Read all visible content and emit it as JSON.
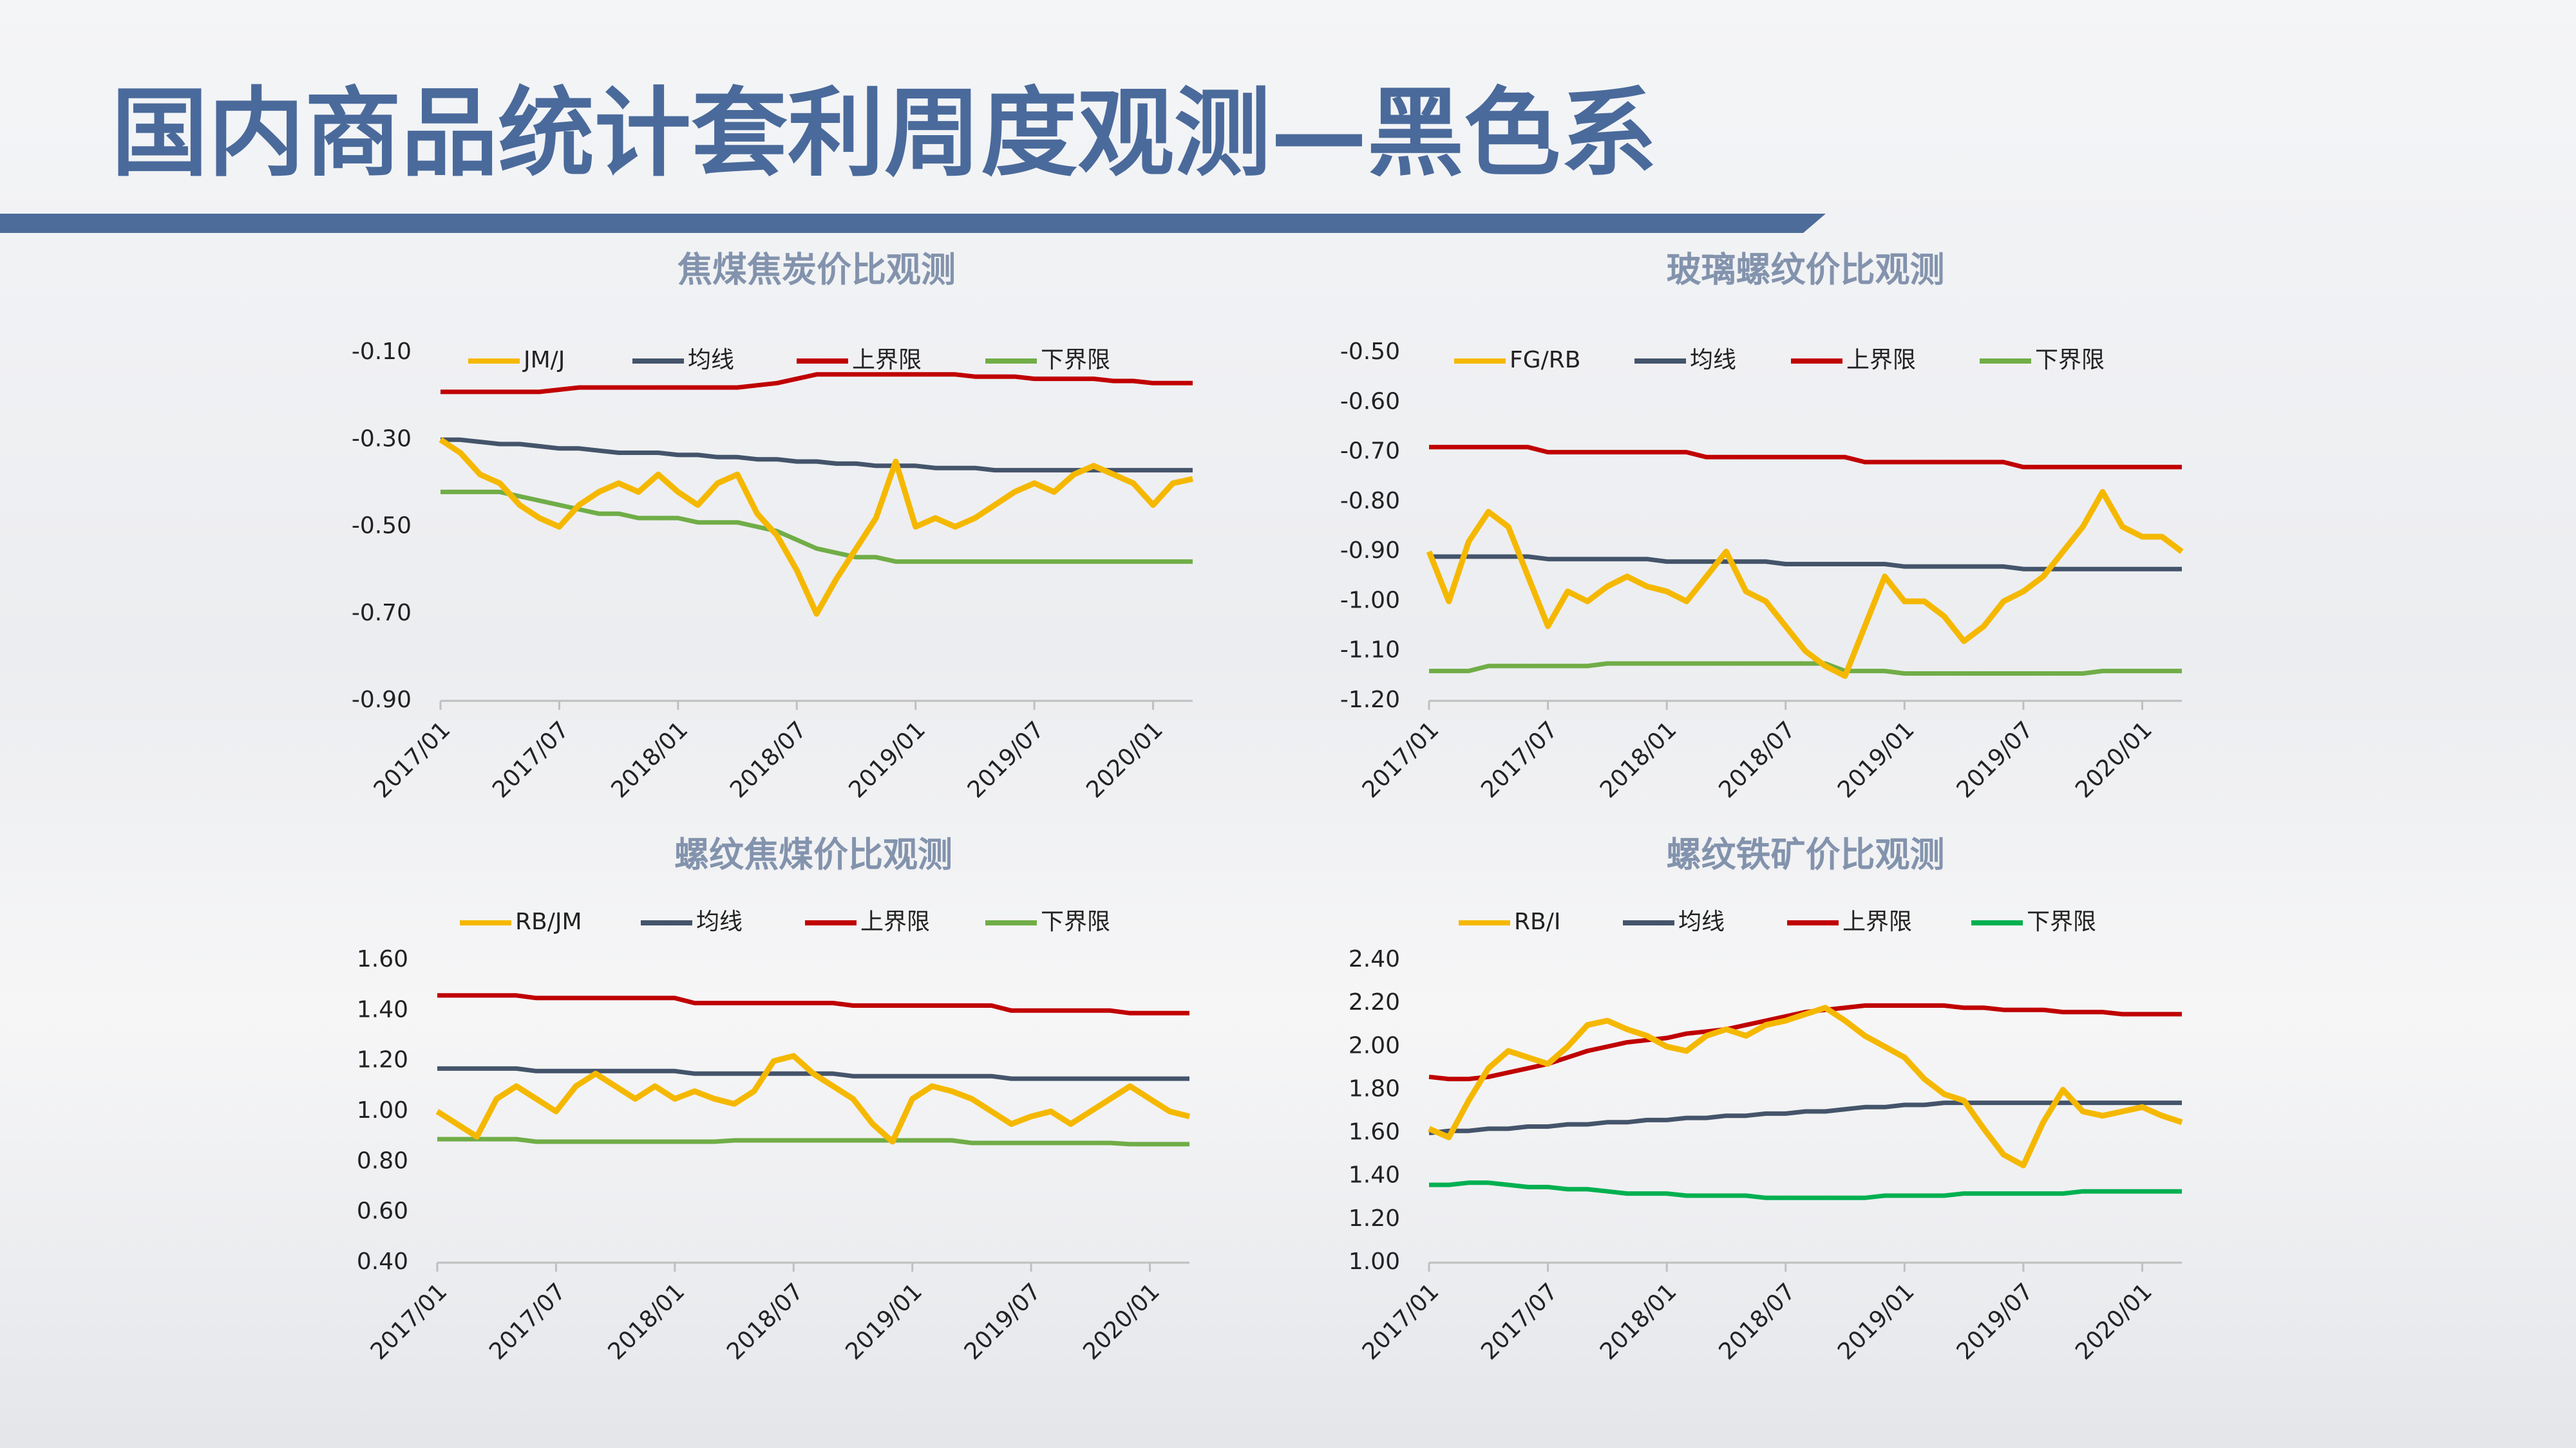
{
  "header": {
    "title": "国内商品统计套利周度观测—黑色系"
  },
  "chart_data": [
    {
      "type": "line",
      "title": "焦煤焦炭价比观测",
      "categories": [
        "2017/01",
        null,
        null,
        null,
        null,
        null,
        "2017/07",
        null,
        null,
        null,
        null,
        null,
        "2018/01",
        null,
        null,
        null,
        null,
        null,
        "2018/07",
        null,
        null,
        null,
        null,
        null,
        "2019/01",
        null,
        null,
        null,
        null,
        null,
        "2019/07",
        null,
        null,
        null,
        null,
        null,
        "2020/01",
        null,
        null
      ],
      "ylim": [
        -0.9,
        -0.1
      ],
      "yticks": [
        {
          "value": -0.1,
          "label": "-0.10"
        },
        {
          "value": -0.3,
          "label": "-0.30"
        },
        {
          "value": -0.5,
          "label": "-0.50"
        },
        {
          "value": -0.7,
          "label": "-0.70"
        },
        {
          "value": -0.9,
          "label": "-0.90"
        }
      ],
      "grid": false,
      "series": [
        {
          "name": "JM/J",
          "color": "#f5b800",
          "values": [
            -0.3,
            -0.33,
            -0.38,
            -0.4,
            -0.45,
            -0.48,
            -0.5,
            -0.45,
            -0.42,
            -0.4,
            -0.42,
            -0.38,
            -0.42,
            -0.45,
            -0.4,
            -0.38,
            -0.47,
            -0.52,
            -0.6,
            -0.7,
            -0.62,
            -0.55,
            -0.48,
            -0.35,
            -0.5,
            -0.48,
            -0.5,
            -0.48,
            -0.45,
            -0.42,
            -0.4,
            -0.42,
            -0.38,
            -0.36,
            -0.38,
            -0.4,
            -0.45,
            -0.4,
            -0.39
          ]
        },
        {
          "name": "均线",
          "color": "#44546a",
          "values": [
            -0.3,
            -0.3,
            -0.305,
            -0.31,
            -0.31,
            -0.315,
            -0.32,
            -0.32,
            -0.325,
            -0.33,
            -0.33,
            -0.33,
            -0.335,
            -0.335,
            -0.34,
            -0.34,
            -0.345,
            -0.345,
            -0.35,
            -0.35,
            -0.355,
            -0.355,
            -0.36,
            -0.36,
            -0.36,
            -0.365,
            -0.365,
            -0.365,
            -0.37,
            -0.37,
            -0.37,
            -0.37,
            -0.37,
            -0.37,
            -0.37,
            -0.37,
            -0.37,
            -0.37,
            -0.37
          ]
        },
        {
          "name": "上界限",
          "color": "#c00000",
          "values": [
            -0.19,
            -0.19,
            -0.19,
            -0.19,
            -0.19,
            -0.19,
            -0.185,
            -0.18,
            -0.18,
            -0.18,
            -0.18,
            -0.18,
            -0.18,
            -0.18,
            -0.18,
            -0.18,
            -0.175,
            -0.17,
            -0.16,
            -0.15,
            -0.15,
            -0.15,
            -0.15,
            -0.15,
            -0.15,
            -0.15,
            -0.15,
            -0.155,
            -0.155,
            -0.155,
            -0.16,
            -0.16,
            -0.16,
            -0.16,
            -0.165,
            -0.165,
            -0.17,
            -0.17,
            -0.17
          ]
        },
        {
          "name": "下界限",
          "color": "#70ad47",
          "values": [
            -0.42,
            -0.42,
            -0.42,
            -0.42,
            -0.43,
            -0.44,
            -0.45,
            -0.46,
            -0.47,
            -0.47,
            -0.48,
            -0.48,
            -0.48,
            -0.49,
            -0.49,
            -0.49,
            -0.5,
            -0.51,
            -0.53,
            -0.55,
            -0.56,
            -0.57,
            -0.57,
            -0.58,
            -0.58,
            -0.58,
            -0.58,
            -0.58,
            -0.58,
            -0.58,
            -0.58,
            -0.58,
            -0.58,
            -0.58,
            -0.58,
            -0.58,
            -0.58,
            -0.58,
            -0.58
          ]
        }
      ]
    },
    {
      "type": "line",
      "title": "玻璃螺纹价比观测",
      "categories": [
        "2017/01",
        null,
        null,
        null,
        null,
        null,
        "2017/07",
        null,
        null,
        null,
        null,
        null,
        "2018/01",
        null,
        null,
        null,
        null,
        null,
        "2018/07",
        null,
        null,
        null,
        null,
        null,
        "2019/01",
        null,
        null,
        null,
        null,
        null,
        "2019/07",
        null,
        null,
        null,
        null,
        null,
        "2020/01",
        null,
        null
      ],
      "ylim": [
        -1.2,
        -0.5
      ],
      "yticks": [
        {
          "value": -0.5,
          "label": "-0.50"
        },
        {
          "value": -0.6,
          "label": "-0.60"
        },
        {
          "value": -0.7,
          "label": "-0.70"
        },
        {
          "value": -0.8,
          "label": "-0.80"
        },
        {
          "value": -0.9,
          "label": "-0.90"
        },
        {
          "value": -1.0,
          "label": "-1.00"
        },
        {
          "value": -1.1,
          "label": "-1.10"
        },
        {
          "value": -1.2,
          "label": "-1.20"
        }
      ],
      "grid": false,
      "series": [
        {
          "name": "FG/RB",
          "color": "#f5b800",
          "values": [
            -0.9,
            -1.0,
            -0.88,
            -0.82,
            -0.85,
            -0.95,
            -1.05,
            -0.98,
            -1.0,
            -0.97,
            -0.95,
            -0.97,
            -0.98,
            -1.0,
            -0.95,
            -0.9,
            -0.98,
            -1.0,
            -1.05,
            -1.1,
            -1.13,
            -1.15,
            -1.05,
            -0.95,
            -1.0,
            -1.0,
            -1.03,
            -1.08,
            -1.05,
            -1.0,
            -0.98,
            -0.95,
            -0.9,
            -0.85,
            -0.78,
            -0.85,
            -0.87,
            -0.87,
            -0.9
          ]
        },
        {
          "name": "均线",
          "color": "#44546a",
          "values": [
            -0.91,
            -0.91,
            -0.91,
            -0.91,
            -0.91,
            -0.91,
            -0.915,
            -0.915,
            -0.915,
            -0.915,
            -0.915,
            -0.915,
            -0.92,
            -0.92,
            -0.92,
            -0.92,
            -0.92,
            -0.92,
            -0.925,
            -0.925,
            -0.925,
            -0.925,
            -0.925,
            -0.925,
            -0.93,
            -0.93,
            -0.93,
            -0.93,
            -0.93,
            -0.93,
            -0.935,
            -0.935,
            -0.935,
            -0.935,
            -0.935,
            -0.935,
            -0.935,
            -0.935,
            -0.935
          ]
        },
        {
          "name": "上界限",
          "color": "#c00000",
          "values": [
            -0.69,
            -0.69,
            -0.69,
            -0.69,
            -0.69,
            -0.69,
            -0.7,
            -0.7,
            -0.7,
            -0.7,
            -0.7,
            -0.7,
            -0.7,
            -0.7,
            -0.71,
            -0.71,
            -0.71,
            -0.71,
            -0.71,
            -0.71,
            -0.71,
            -0.71,
            -0.72,
            -0.72,
            -0.72,
            -0.72,
            -0.72,
            -0.72,
            -0.72,
            -0.72,
            -0.73,
            -0.73,
            -0.73,
            -0.73,
            -0.73,
            -0.73,
            -0.73,
            -0.73,
            -0.73
          ]
        },
        {
          "name": "下界限",
          "color": "#70ad47",
          "values": [
            -1.14,
            -1.14,
            -1.14,
            -1.13,
            -1.13,
            -1.13,
            -1.13,
            -1.13,
            -1.13,
            -1.125,
            -1.125,
            -1.125,
            -1.125,
            -1.125,
            -1.125,
            -1.125,
            -1.125,
            -1.125,
            -1.125,
            -1.125,
            -1.125,
            -1.14,
            -1.14,
            -1.14,
            -1.145,
            -1.145,
            -1.145,
            -1.145,
            -1.145,
            -1.145,
            -1.145,
            -1.145,
            -1.145,
            -1.145,
            -1.14,
            -1.14,
            -1.14,
            -1.14,
            -1.14
          ]
        }
      ]
    },
    {
      "type": "line",
      "title": "螺纹焦煤价比观测",
      "categories": [
        "2017/01",
        null,
        null,
        null,
        null,
        null,
        "2017/07",
        null,
        null,
        null,
        null,
        null,
        "2018/01",
        null,
        null,
        null,
        null,
        null,
        "2018/07",
        null,
        null,
        null,
        null,
        null,
        "2019/01",
        null,
        null,
        null,
        null,
        null,
        "2019/07",
        null,
        null,
        null,
        null,
        null,
        "2020/01",
        null,
        null
      ],
      "ylim": [
        0.4,
        1.6
      ],
      "yticks": [
        {
          "value": 1.6,
          "label": "1.60"
        },
        {
          "value": 1.4,
          "label": "1.40"
        },
        {
          "value": 1.2,
          "label": "1.20"
        },
        {
          "value": 1.0,
          "label": "1.00"
        },
        {
          "value": 0.8,
          "label": "0.80"
        },
        {
          "value": 0.6,
          "label": "0.60"
        },
        {
          "value": 0.4,
          "label": "0.40"
        }
      ],
      "grid": false,
      "series": [
        {
          "name": "RB/JM",
          "color": "#f5b800",
          "values": [
            1.0,
            0.95,
            0.9,
            1.05,
            1.1,
            1.05,
            1.0,
            1.1,
            1.15,
            1.1,
            1.05,
            1.1,
            1.05,
            1.08,
            1.05,
            1.03,
            1.08,
            1.2,
            1.22,
            1.15,
            1.1,
            1.05,
            0.95,
            0.88,
            1.05,
            1.1,
            1.08,
            1.05,
            1.0,
            0.95,
            0.98,
            1.0,
            0.95,
            1.0,
            1.05,
            1.1,
            1.05,
            1.0,
            0.98
          ]
        },
        {
          "name": "均线",
          "color": "#44546a",
          "values": [
            1.17,
            1.17,
            1.17,
            1.17,
            1.17,
            1.16,
            1.16,
            1.16,
            1.16,
            1.16,
            1.16,
            1.16,
            1.16,
            1.15,
            1.15,
            1.15,
            1.15,
            1.15,
            1.15,
            1.15,
            1.15,
            1.14,
            1.14,
            1.14,
            1.14,
            1.14,
            1.14,
            1.14,
            1.14,
            1.13,
            1.13,
            1.13,
            1.13,
            1.13,
            1.13,
            1.13,
            1.13,
            1.13,
            1.13
          ]
        },
        {
          "name": "上界限",
          "color": "#c00000",
          "values": [
            1.46,
            1.46,
            1.46,
            1.46,
            1.46,
            1.45,
            1.45,
            1.45,
            1.45,
            1.45,
            1.45,
            1.45,
            1.45,
            1.43,
            1.43,
            1.43,
            1.43,
            1.43,
            1.43,
            1.43,
            1.43,
            1.42,
            1.42,
            1.42,
            1.42,
            1.42,
            1.42,
            1.42,
            1.42,
            1.4,
            1.4,
            1.4,
            1.4,
            1.4,
            1.4,
            1.39,
            1.39,
            1.39,
            1.39
          ]
        },
        {
          "name": "下界限",
          "color": "#70ad47",
          "values": [
            0.89,
            0.89,
            0.89,
            0.89,
            0.89,
            0.88,
            0.88,
            0.88,
            0.88,
            0.88,
            0.88,
            0.88,
            0.88,
            0.88,
            0.88,
            0.885,
            0.885,
            0.885,
            0.885,
            0.885,
            0.885,
            0.885,
            0.885,
            0.885,
            0.885,
            0.885,
            0.885,
            0.875,
            0.875,
            0.875,
            0.875,
            0.875,
            0.875,
            0.875,
            0.875,
            0.87,
            0.87,
            0.87,
            0.87
          ]
        }
      ]
    },
    {
      "type": "line",
      "title": "螺纹铁矿价比观测",
      "categories": [
        "2017/01",
        null,
        null,
        null,
        null,
        null,
        "2017/07",
        null,
        null,
        null,
        null,
        null,
        "2018/01",
        null,
        null,
        null,
        null,
        null,
        "2018/07",
        null,
        null,
        null,
        null,
        null,
        "2019/01",
        null,
        null,
        null,
        null,
        null,
        "2019/07",
        null,
        null,
        null,
        null,
        null,
        "2020/01",
        null,
        null
      ],
      "ylim": [
        1.0,
        2.4
      ],
      "yticks": [
        {
          "value": 2.4,
          "label": "2.40"
        },
        {
          "value": 2.2,
          "label": "2.20"
        },
        {
          "value": 2.0,
          "label": "2.00"
        },
        {
          "value": 1.8,
          "label": "1.80"
        },
        {
          "value": 1.6,
          "label": "1.60"
        },
        {
          "value": 1.4,
          "label": "1.40"
        },
        {
          "value": 1.2,
          "label": "1.20"
        },
        {
          "value": 1.0,
          "label": "1.00"
        }
      ],
      "grid": false,
      "series": [
        {
          "name": "RB/I",
          "color": "#f5b800",
          "values": [
            1.62,
            1.58,
            1.75,
            1.9,
            1.98,
            1.95,
            1.92,
            2.0,
            2.1,
            2.12,
            2.08,
            2.05,
            2.0,
            1.98,
            2.05,
            2.08,
            2.05,
            2.1,
            2.12,
            2.15,
            2.18,
            2.12,
            2.05,
            2.0,
            1.95,
            1.85,
            1.78,
            1.75,
            1.62,
            1.5,
            1.45,
            1.65,
            1.8,
            1.7,
            1.68,
            1.7,
            1.72,
            1.68,
            1.65
          ]
        },
        {
          "name": "均线",
          "color": "#44546a",
          "values": [
            1.6,
            1.61,
            1.61,
            1.62,
            1.62,
            1.63,
            1.63,
            1.64,
            1.64,
            1.65,
            1.65,
            1.66,
            1.66,
            1.67,
            1.67,
            1.68,
            1.68,
            1.69,
            1.69,
            1.7,
            1.7,
            1.71,
            1.72,
            1.72,
            1.73,
            1.73,
            1.74,
            1.74,
            1.74,
            1.74,
            1.74,
            1.74,
            1.74,
            1.74,
            1.74,
            1.74,
            1.74,
            1.74,
            1.74
          ]
        },
        {
          "name": "上界限",
          "color": "#c00000",
          "values": [
            1.86,
            1.85,
            1.85,
            1.86,
            1.88,
            1.9,
            1.92,
            1.95,
            1.98,
            2.0,
            2.02,
            2.03,
            2.04,
            2.06,
            2.07,
            2.08,
            2.1,
            2.12,
            2.14,
            2.16,
            2.17,
            2.18,
            2.19,
            2.19,
            2.19,
            2.19,
            2.19,
            2.18,
            2.18,
            2.17,
            2.17,
            2.17,
            2.16,
            2.16,
            2.16,
            2.15,
            2.15,
            2.15,
            2.15
          ]
        },
        {
          "name": "下界限",
          "color": "#00b050",
          "values": [
            1.36,
            1.36,
            1.37,
            1.37,
            1.36,
            1.35,
            1.35,
            1.34,
            1.34,
            1.33,
            1.32,
            1.32,
            1.32,
            1.31,
            1.31,
            1.31,
            1.31,
            1.3,
            1.3,
            1.3,
            1.3,
            1.3,
            1.3,
            1.31,
            1.31,
            1.31,
            1.31,
            1.32,
            1.32,
            1.32,
            1.32,
            1.32,
            1.32,
            1.33,
            1.33,
            1.33,
            1.33,
            1.33,
            1.33
          ]
        }
      ]
    }
  ]
}
